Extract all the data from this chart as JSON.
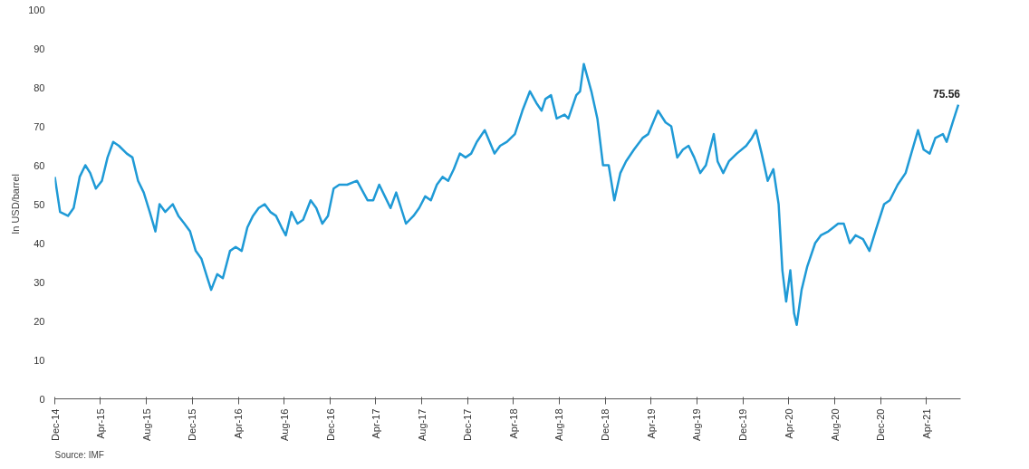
{
  "chart_data": {
    "type": "line",
    "ylabel": "In USD/barrel",
    "x": [
      "2014-12-01",
      "2014-12-15",
      "2015-01-05",
      "2015-01-20",
      "2015-02-05",
      "2015-02-20",
      "2015-03-05",
      "2015-03-20",
      "2015-04-05",
      "2015-04-20",
      "2015-05-05",
      "2015-05-20",
      "2015-06-10",
      "2015-06-25",
      "2015-07-10",
      "2015-07-25",
      "2015-08-10",
      "2015-08-25",
      "2015-09-05",
      "2015-09-20",
      "2015-10-10",
      "2015-10-25",
      "2015-11-10",
      "2015-11-25",
      "2015-12-10",
      "2015-12-25",
      "2016-01-10",
      "2016-01-20",
      "2016-02-05",
      "2016-02-20",
      "2016-03-10",
      "2016-03-25",
      "2016-04-10",
      "2016-04-25",
      "2016-05-10",
      "2016-05-25",
      "2016-06-10",
      "2016-06-25",
      "2016-07-10",
      "2016-07-25",
      "2016-08-05",
      "2016-08-20",
      "2016-09-05",
      "2016-09-20",
      "2016-10-10",
      "2016-10-25",
      "2016-11-10",
      "2016-11-25",
      "2016-12-10",
      "2016-12-25",
      "2017-01-15",
      "2017-02-10",
      "2017-03-10",
      "2017-03-25",
      "2017-04-10",
      "2017-04-25",
      "2017-05-10",
      "2017-05-25",
      "2017-06-20",
      "2017-07-10",
      "2017-07-25",
      "2017-08-10",
      "2017-08-25",
      "2017-09-10",
      "2017-09-25",
      "2017-10-10",
      "2017-10-25",
      "2017-11-10",
      "2017-11-25",
      "2017-12-10",
      "2017-12-25",
      "2018-01-15",
      "2018-02-10",
      "2018-02-25",
      "2018-03-15",
      "2018-04-05",
      "2018-04-25",
      "2018-05-15",
      "2018-06-01",
      "2018-06-15",
      "2018-06-25",
      "2018-07-10",
      "2018-07-25",
      "2018-08-15",
      "2018-08-25",
      "2018-09-15",
      "2018-09-25",
      "2018-10-05",
      "2018-10-25",
      "2018-11-10",
      "2018-11-25",
      "2018-12-10",
      "2018-12-25",
      "2019-01-10",
      "2019-01-25",
      "2019-02-15",
      "2019-03-10",
      "2019-03-25",
      "2019-04-20",
      "2019-05-10",
      "2019-05-25",
      "2019-06-10",
      "2019-06-25",
      "2019-07-10",
      "2019-07-25",
      "2019-08-10",
      "2019-08-25",
      "2019-09-15",
      "2019-09-25",
      "2019-10-10",
      "2019-10-25",
      "2019-11-15",
      "2019-12-10",
      "2019-12-25",
      "2020-01-05",
      "2020-01-20",
      "2020-02-05",
      "2020-02-20",
      "2020-03-05",
      "2020-03-15",
      "2020-03-25",
      "2020-04-05",
      "2020-04-15",
      "2020-04-22",
      "2020-05-05",
      "2020-05-20",
      "2020-06-10",
      "2020-06-25",
      "2020-07-15",
      "2020-08-10",
      "2020-08-25",
      "2020-09-10",
      "2020-09-25",
      "2020-10-15",
      "2020-11-01",
      "2020-11-20",
      "2020-12-10",
      "2020-12-25",
      "2021-01-15",
      "2021-02-05",
      "2021-02-20",
      "2021-03-10",
      "2021-03-25",
      "2021-04-10",
      "2021-04-25",
      "2021-05-15",
      "2021-05-25",
      "2021-06-10",
      "2021-06-25"
    ],
    "series": [
      {
        "color": "#1f9ad6",
        "values": [
          57,
          48,
          47,
          49,
          57,
          60,
          58,
          54,
          56,
          62,
          66,
          65,
          63,
          62,
          56,
          53,
          48,
          43,
          50,
          48,
          50,
          47,
          45,
          43,
          38,
          36,
          31,
          28,
          32,
          31,
          38,
          39,
          38,
          44,
          47,
          49,
          50,
          48,
          47,
          44,
          42,
          48,
          45,
          46,
          51,
          49,
          45,
          47,
          54,
          55,
          55,
          56,
          51,
          51,
          55,
          52,
          49,
          53,
          45,
          47,
          49,
          52,
          51,
          55,
          57,
          56,
          59,
          63,
          62,
          63,
          66,
          69,
          63,
          65,
          66,
          68,
          74,
          79,
          76,
          74,
          77,
          78,
          72,
          73,
          72,
          78,
          79,
          86,
          79,
          72,
          60,
          60,
          51,
          58,
          61,
          64,
          67,
          68,
          74,
          71,
          70,
          62,
          64,
          65,
          62,
          58,
          60,
          68,
          61,
          58,
          61,
          63,
          65,
          67,
          69,
          63,
          56,
          59,
          50,
          33,
          25,
          33,
          22,
          19,
          28,
          34,
          40,
          42,
          43,
          45,
          45,
          40,
          42,
          41,
          38,
          44,
          50,
          51,
          55,
          58,
          63,
          69,
          64,
          63,
          67,
          68,
          66,
          71,
          75.56
        ]
      }
    ],
    "xlim": [
      "2014-12-01",
      "2021-07-01"
    ],
    "xticks": [
      {
        "value": "2014-12-01",
        "label": "Dec-14"
      },
      {
        "value": "2015-04-01",
        "label": "Apr-15"
      },
      {
        "value": "2015-08-01",
        "label": "Aug-15"
      },
      {
        "value": "2015-12-01",
        "label": "Dec-15"
      },
      {
        "value": "2016-04-01",
        "label": "Apr-16"
      },
      {
        "value": "2016-08-01",
        "label": "Aug-16"
      },
      {
        "value": "2016-12-01",
        "label": "Dec-16"
      },
      {
        "value": "2017-04-01",
        "label": "Apr-17"
      },
      {
        "value": "2017-08-01",
        "label": "Aug-17"
      },
      {
        "value": "2017-12-01",
        "label": "Dec-17"
      },
      {
        "value": "2018-04-01",
        "label": "Apr-18"
      },
      {
        "value": "2018-08-01",
        "label": "Aug-18"
      },
      {
        "value": "2018-12-01",
        "label": "Dec-18"
      },
      {
        "value": "2019-04-01",
        "label": "Apr-19"
      },
      {
        "value": "2019-08-01",
        "label": "Aug-19"
      },
      {
        "value": "2019-12-01",
        "label": "Dec-19"
      },
      {
        "value": "2020-04-01",
        "label": "Apr-20"
      },
      {
        "value": "2020-08-01",
        "label": "Aug-20"
      },
      {
        "value": "2020-12-01",
        "label": "Dec-20"
      },
      {
        "value": "2021-04-01",
        "label": "Apr-21"
      }
    ],
    "ylim": [
      0,
      100
    ],
    "yticks": [
      0,
      10,
      20,
      30,
      40,
      50,
      60,
      70,
      80,
      90,
      100
    ],
    "grid": false,
    "marker": "none",
    "line_style": "solid",
    "annotations": [
      {
        "text": "75.56",
        "x": "2021-06-25",
        "y": 75.56
      },
      "Source: IMF"
    ]
  }
}
